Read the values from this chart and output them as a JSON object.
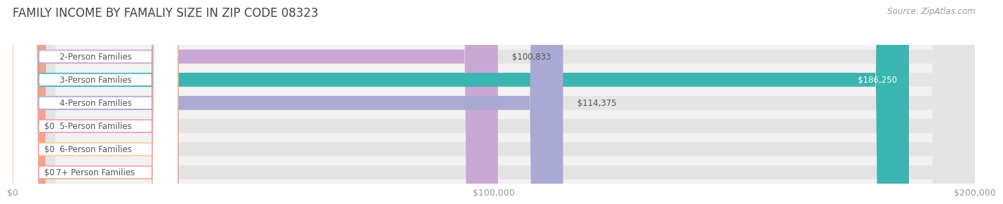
{
  "title": "FAMILY INCOME BY FAMALIY SIZE IN ZIP CODE 08323",
  "source": "Source: ZipAtlas.com",
  "categories": [
    "2-Person Families",
    "3-Person Families",
    "4-Person Families",
    "5-Person Families",
    "6-Person Families",
    "7+ Person Families"
  ],
  "values": [
    100833,
    186250,
    114375,
    0,
    0,
    0
  ],
  "bar_colors": [
    "#c9a8d4",
    "#3ab5b0",
    "#a9a9d4",
    "#f78fb3",
    "#f5c98a",
    "#f5a090"
  ],
  "label_colors": [
    "#555555",
    "#ffffff",
    "#555555",
    "#555555",
    "#555555",
    "#555555"
  ],
  "bar_bg_color": "#e8e8e8",
  "bg_color": "#ffffff",
  "xlim": [
    0,
    200000
  ],
  "xticks": [
    0,
    100000,
    200000
  ],
  "xtick_labels": [
    "$0",
    "$100,000",
    "$200,000"
  ],
  "title_fontsize": 12,
  "label_fontsize": 8.5,
  "value_fontsize": 8.5,
  "source_fontsize": 8.5
}
